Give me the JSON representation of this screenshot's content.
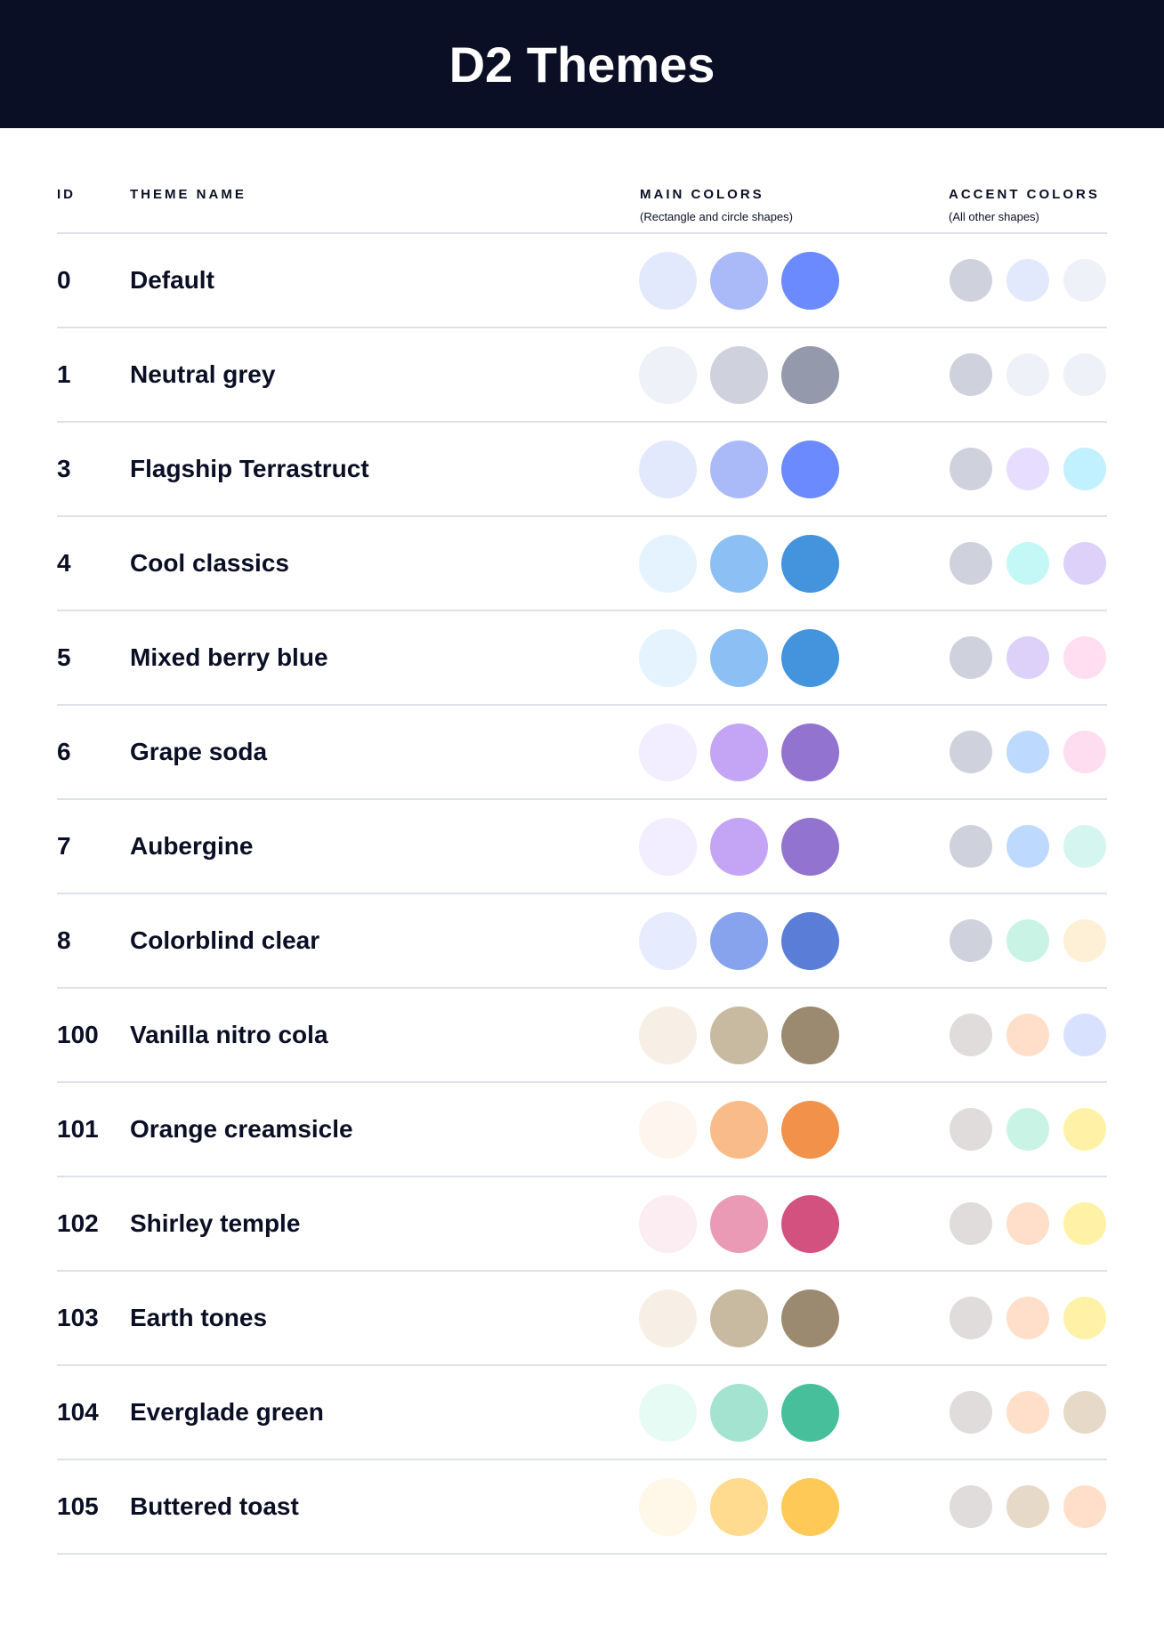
{
  "title": "D2 Themes",
  "columns": {
    "id": "ID",
    "name": "THEME NAME",
    "main": "MAIN COLORS",
    "main_sub": "(Rectangle and circle shapes)",
    "accent": "ACCENT COLORS",
    "accent_sub": "(All other shapes)"
  },
  "themes": [
    {
      "id": "0",
      "name": "Default",
      "main": [
        "#E3E9FD",
        "#AABAF8",
        "#6B8AFD"
      ],
      "accent": [
        "#CFD2DD",
        "#E3E9FD",
        "#EEF1F8"
      ]
    },
    {
      "id": "1",
      "name": "Neutral grey",
      "main": [
        "#EEF1F8",
        "#CFD2DD",
        "#9499AB"
      ],
      "accent": [
        "#CFD2DD",
        "#EEF1F8",
        "#EEF1F8"
      ]
    },
    {
      "id": "3",
      "name": "Flagship Terrastruct",
      "main": [
        "#E3E9FD",
        "#AABAF8",
        "#6B8AFD"
      ],
      "accent": [
        "#CFD2DD",
        "#E7DEFF",
        "#C1F0FF"
      ]
    },
    {
      "id": "4",
      "name": "Cool classics",
      "main": [
        "#E5F3FF",
        "#8CC0F5",
        "#4393DD"
      ],
      "accent": [
        "#CFD2DD",
        "#C3F8F7",
        "#DDD1FA"
      ]
    },
    {
      "id": "5",
      "name": "Mixed berry blue",
      "main": [
        "#E5F3FF",
        "#8CC0F5",
        "#4393DD"
      ],
      "accent": [
        "#CFD2DD",
        "#DDD1FA",
        "#FFDEF1"
      ]
    },
    {
      "id": "6",
      "name": "Grape soda",
      "main": [
        "#F2EDFF",
        "#C4A5F5",
        "#9373D0"
      ],
      "accent": [
        "#CFD2DD",
        "#BDDAFE",
        "#FEDDF0"
      ]
    },
    {
      "id": "7",
      "name": "Aubergine",
      "main": [
        "#F2EDFF",
        "#C4A5F5",
        "#9373D0"
      ],
      "accent": [
        "#CFD2DD",
        "#BDDAFE",
        "#D5F5F1"
      ]
    },
    {
      "id": "8",
      "name": "Colorblind clear",
      "main": [
        "#E7EBFE",
        "#87A3ED",
        "#5A7ED7"
      ],
      "accent": [
        "#CFD2DD",
        "#C9F3E5",
        "#FEF0D6"
      ]
    },
    {
      "id": "100",
      "name": "Vanilla nitro cola",
      "main": [
        "#F7EFE5",
        "#C8B9A1",
        "#9B8A70"
      ],
      "accent": [
        "#DFDCDB",
        "#FFDFC9",
        "#D8E2FE"
      ]
    },
    {
      "id": "101",
      "name": "Orange creamsicle",
      "main": [
        "#FFF5EF",
        "#FABB8A",
        "#F1914A"
      ],
      "accent": [
        "#DFDCDB",
        "#C9F3E5",
        "#FFF2A6"
      ]
    },
    {
      "id": "102",
      "name": "Shirley temple",
      "main": [
        "#FBEDF1",
        "#EA9AB5",
        "#D2517F"
      ],
      "accent": [
        "#DFDCDB",
        "#FFDFC9",
        "#FFF2A6"
      ]
    },
    {
      "id": "103",
      "name": "Earth tones",
      "main": [
        "#F7EFE5",
        "#C8B9A1",
        "#9B8A70"
      ],
      "accent": [
        "#DFDCDB",
        "#FFDFC9",
        "#FFF2A6"
      ]
    },
    {
      "id": "104",
      "name": "Everglade green",
      "main": [
        "#E6FBF3",
        "#A5E3D1",
        "#48BF9B"
      ],
      "accent": [
        "#DFDCDB",
        "#FFDFC9",
        "#E6D9C7"
      ]
    },
    {
      "id": "105",
      "name": "Buttered toast",
      "main": [
        "#FFF7E8",
        "#FFDB8F",
        "#FEC957"
      ],
      "accent": [
        "#DFDCDB",
        "#E6D9C7",
        "#FFDFC9"
      ]
    }
  ]
}
